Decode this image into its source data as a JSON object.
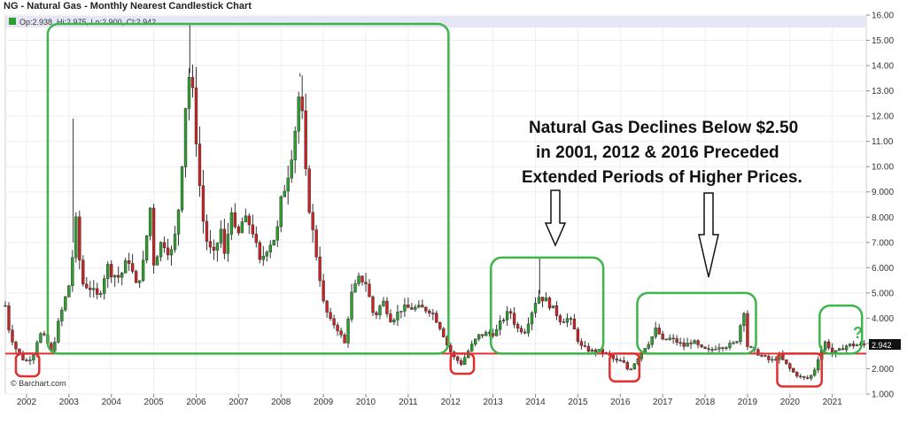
{
  "chart_title": "NG - Natural Gas - Monthly Nearest Candlestick Chart",
  "legend_ohlc": "Op:2.938, Hi:2.975, Lo:2.900, Cl:2.942",
  "last_price_tag": "2.942",
  "watermark": "© Barchart.com",
  "annotation_lines": [
    "Natural Gas Declines Below $2.50",
    "in 2001, 2012 & 2016 Preceded",
    "Extended Periods of Higher Prices."
  ],
  "question_mark": "?",
  "colors": {
    "up": "#2ca02c",
    "down": "#cc2222",
    "support": "#e23030",
    "green_box": "#3cb64a",
    "red_box": "#e23030",
    "legend_band": "#e6e6f7"
  },
  "chart_data": {
    "type": "candlestick",
    "title": "NG - Natural Gas - Monthly Nearest Candlestick Chart",
    "ylim": [
      1.0,
      16.0
    ],
    "y_ticks": [
      "1.000",
      "2.000",
      "3.000",
      "4.000",
      "5.000",
      "6.000",
      "7.000",
      "8.000",
      "9.000",
      "10.00",
      "11.00",
      "12.00",
      "13.00",
      "14.00",
      "15.00",
      "16.00"
    ],
    "x_ticks": [
      "2002",
      "2003",
      "2004",
      "2005",
      "2006",
      "2007",
      "2008",
      "2009",
      "2010",
      "2011",
      "2012",
      "2013",
      "2014",
      "2015",
      "2016",
      "2017",
      "2018",
      "2019",
      "2020",
      "2021"
    ],
    "x_start": 2001.5,
    "x_end": 2021.8,
    "support_level": 2.6,
    "last": {
      "open": 2.938,
      "high": 2.975,
      "low": 2.9,
      "close": 2.942
    },
    "close_path": [
      [
        2001.5,
        4.5
      ],
      [
        2001.6,
        3.4
      ],
      [
        2001.75,
        2.8
      ],
      [
        2001.9,
        2.4
      ],
      [
        2002.0,
        2.3
      ],
      [
        2002.15,
        2.5
      ],
      [
        2002.3,
        3.4
      ],
      [
        2002.45,
        3.2
      ],
      [
        2002.6,
        2.6
      ],
      [
        2002.75,
        3.8
      ],
      [
        2002.9,
        4.7
      ],
      [
        2003.05,
        5.6
      ],
      [
        2003.15,
        8.1
      ],
      [
        2003.3,
        5.4
      ],
      [
        2003.5,
        5.2
      ],
      [
        2003.7,
        4.8
      ],
      [
        2003.9,
        6.1
      ],
      [
        2004.0,
        5.8
      ],
      [
        2004.2,
        5.6
      ],
      [
        2004.4,
        6.4
      ],
      [
        2004.6,
        5.2
      ],
      [
        2004.8,
        6.5
      ],
      [
        2004.9,
        8.8
      ],
      [
        2005.0,
        6.2
      ],
      [
        2005.2,
        7.1
      ],
      [
        2005.4,
        6.5
      ],
      [
        2005.55,
        7.6
      ],
      [
        2005.7,
        11.0
      ],
      [
        2005.8,
        13.9
      ],
      [
        2005.95,
        12.5
      ],
      [
        2006.05,
        9.8
      ],
      [
        2006.2,
        7.3
      ],
      [
        2006.4,
        6.4
      ],
      [
        2006.6,
        7.6
      ],
      [
        2006.7,
        5.9
      ],
      [
        2006.8,
        8.8
      ],
      [
        2006.95,
        7.0
      ],
      [
        2007.1,
        7.9
      ],
      [
        2007.3,
        7.7
      ],
      [
        2007.5,
        6.2
      ],
      [
        2007.7,
        6.9
      ],
      [
        2007.9,
        7.3
      ],
      [
        2008.0,
        8.6
      ],
      [
        2008.2,
        10.0
      ],
      [
        2008.35,
        11.7
      ],
      [
        2008.45,
        13.3
      ],
      [
        2008.6,
        9.2
      ],
      [
        2008.75,
        7.4
      ],
      [
        2008.9,
        5.8
      ],
      [
        2009.0,
        4.6
      ],
      [
        2009.15,
        3.9
      ],
      [
        2009.3,
        3.7
      ],
      [
        2009.5,
        3.0
      ],
      [
        2009.65,
        4.9
      ],
      [
        2009.85,
        5.6
      ],
      [
        2010.0,
        5.4
      ],
      [
        2010.2,
        4.0
      ],
      [
        2010.4,
        4.7
      ],
      [
        2010.6,
        3.9
      ],
      [
        2010.85,
        4.4
      ],
      [
        2011.0,
        4.4
      ],
      [
        2011.3,
        4.4
      ],
      [
        2011.55,
        4.3
      ],
      [
        2011.8,
        3.5
      ],
      [
        2011.9,
        3.0
      ],
      [
        2012.05,
        2.5
      ],
      [
        2012.25,
        2.2
      ],
      [
        2012.45,
        2.8
      ],
      [
        2012.65,
        3.3
      ],
      [
        2012.85,
        3.4
      ],
      [
        2013.05,
        3.4
      ],
      [
        2013.2,
        3.9
      ],
      [
        2013.4,
        4.3
      ],
      [
        2013.55,
        3.6
      ],
      [
        2013.75,
        3.5
      ],
      [
        2013.9,
        4.2
      ],
      [
        2014.05,
        4.9
      ],
      [
        2014.25,
        4.7
      ],
      [
        2014.45,
        4.3
      ],
      [
        2014.6,
        3.9
      ],
      [
        2014.8,
        4.0
      ],
      [
        2014.95,
        3.4
      ],
      [
        2015.05,
        2.9
      ],
      [
        2015.3,
        2.7
      ],
      [
        2015.55,
        2.7
      ],
      [
        2015.75,
        2.5
      ],
      [
        2015.9,
        2.3
      ],
      [
        2016.05,
        2.3
      ],
      [
        2016.2,
        1.9
      ],
      [
        2016.4,
        2.4
      ],
      [
        2016.55,
        2.8
      ],
      [
        2016.7,
        3.1
      ],
      [
        2016.85,
        3.6
      ],
      [
        2017.0,
        3.1
      ],
      [
        2017.15,
        3.2
      ],
      [
        2017.3,
        3.1
      ],
      [
        2017.5,
        2.9
      ],
      [
        2017.7,
        3.1
      ],
      [
        2017.9,
        2.8
      ],
      [
        2018.1,
        2.7
      ],
      [
        2018.3,
        2.9
      ],
      [
        2018.5,
        2.9
      ],
      [
        2018.7,
        3.0
      ],
      [
        2018.8,
        3.3
      ],
      [
        2018.9,
        4.6
      ],
      [
        2019.0,
        2.9
      ],
      [
        2019.15,
        2.7
      ],
      [
        2019.35,
        2.5
      ],
      [
        2019.55,
        2.3
      ],
      [
        2019.75,
        2.5
      ],
      [
        2019.9,
        2.2
      ],
      [
        2020.05,
        1.9
      ],
      [
        2020.2,
        1.7
      ],
      [
        2020.4,
        1.6
      ],
      [
        2020.55,
        1.8
      ],
      [
        2020.7,
        2.6
      ],
      [
        2020.85,
        3.1
      ],
      [
        2021.0,
        2.6
      ],
      [
        2021.15,
        2.7
      ],
      [
        2021.3,
        2.9
      ],
      [
        2021.4,
        2.94
      ]
    ],
    "spikes": [
      [
        2003.1,
        11.9
      ],
      [
        2005.85,
        15.6
      ],
      [
        2008.45,
        13.7
      ],
      [
        2014.1,
        6.4
      ]
    ]
  }
}
